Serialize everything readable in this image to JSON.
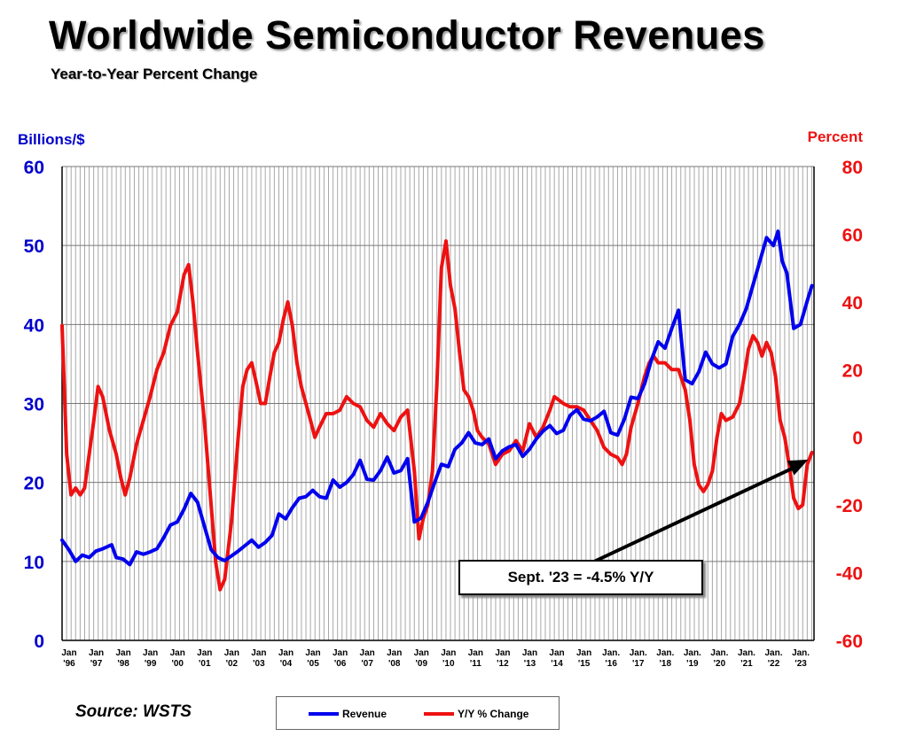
{
  "title": "Worldwide Semiconductor Revenues",
  "subtitle": "Year-to-Year Percent Change",
  "source": "Source: WSTS",
  "callout": "Sept. '23 = -4.5% Y/Y",
  "colors": {
    "revenue": "#0000ee",
    "yoy": "#ee1111",
    "grid": "#a8a8a8",
    "axis": "#000000"
  },
  "chart_data": {
    "type": "line",
    "y_left": {
      "label": "Billions/$",
      "range": [
        0,
        60
      ],
      "ticks": [
        0,
        10,
        20,
        30,
        40,
        50,
        60
      ]
    },
    "y_right": {
      "label": "Percent",
      "range": [
        -60,
        80
      ],
      "ticks": [
        -60,
        -40,
        -20,
        0,
        20,
        40,
        60,
        80
      ]
    },
    "x_range": [
      1996.0,
      2023.75
    ],
    "x_ticks": [
      {
        "year": 1996,
        "top": "Jan",
        "bottom": "'96"
      },
      {
        "year": 1997,
        "top": "Jan",
        "bottom": "'97"
      },
      {
        "year": 1998,
        "top": "Jan",
        "bottom": "'98"
      },
      {
        "year": 1999,
        "top": "Jan",
        "bottom": "'99"
      },
      {
        "year": 2000,
        "top": "Jan",
        "bottom": "'00"
      },
      {
        "year": 2001,
        "top": "Jan",
        "bottom": "'01"
      },
      {
        "year": 2002,
        "top": "Jan",
        "bottom": "'02"
      },
      {
        "year": 2003,
        "top": "Jan",
        "bottom": "'03"
      },
      {
        "year": 2004,
        "top": "Jan",
        "bottom": "'04"
      },
      {
        "year": 2005,
        "top": "Jan",
        "bottom": "'05"
      },
      {
        "year": 2006,
        "top": "Jan",
        "bottom": "'06"
      },
      {
        "year": 2007,
        "top": "Jan",
        "bottom": "'07"
      },
      {
        "year": 2008,
        "top": "Jan",
        "bottom": "'08"
      },
      {
        "year": 2009,
        "top": "Jan",
        "bottom": "'09"
      },
      {
        "year": 2010,
        "top": "Jan",
        "bottom": "'10"
      },
      {
        "year": 2011,
        "top": "Jan",
        "bottom": "'11"
      },
      {
        "year": 2012,
        "top": "Jan",
        "bottom": "'12"
      },
      {
        "year": 2013,
        "top": "Jan",
        "bottom": "'13"
      },
      {
        "year": 2014,
        "top": "Jan",
        "bottom": "'14"
      },
      {
        "year": 2015,
        "top": "Jan",
        "bottom": "'15"
      },
      {
        "year": 2016,
        "top": "Jan.",
        "bottom": "'16"
      },
      {
        "year": 2017,
        "top": "Jan.",
        "bottom": "'17"
      },
      {
        "year": 2018,
        "top": "Jan.",
        "bottom": "'18"
      },
      {
        "year": 2019,
        "top": "Jan.",
        "bottom": "'19"
      },
      {
        "year": 2020,
        "top": "Jan.",
        "bottom": "'20"
      },
      {
        "year": 2021,
        "top": "Jan.",
        "bottom": "'21"
      },
      {
        "year": 2022,
        "top": "Jan.",
        "bottom": "'22"
      },
      {
        "year": 2023,
        "top": "Jan.",
        "bottom": "'23"
      }
    ],
    "grid": "vertical monthly lines, horizontal lines at left-axis ticks",
    "legend_placement": "bottom-center",
    "series": [
      {
        "name": "Revenue",
        "axis": "left",
        "points": [
          [
            1996.0,
            12.7
          ],
          [
            1996.25,
            11.5
          ],
          [
            1996.5,
            10.0
          ],
          [
            1996.75,
            10.8
          ],
          [
            1997.0,
            10.5
          ],
          [
            1997.25,
            11.3
          ],
          [
            1997.5,
            11.6
          ],
          [
            1997.83,
            12.1
          ],
          [
            1998.0,
            10.5
          ],
          [
            1998.25,
            10.3
          ],
          [
            1998.5,
            9.6
          ],
          [
            1998.75,
            11.2
          ],
          [
            1999.0,
            10.9
          ],
          [
            1999.25,
            11.2
          ],
          [
            1999.5,
            11.6
          ],
          [
            1999.75,
            13.0
          ],
          [
            2000.0,
            14.6
          ],
          [
            2000.25,
            15.0
          ],
          [
            2000.5,
            16.6
          ],
          [
            2000.75,
            18.6
          ],
          [
            2001.0,
            17.5
          ],
          [
            2001.25,
            14.5
          ],
          [
            2001.5,
            11.5
          ],
          [
            2001.75,
            10.5
          ],
          [
            2002.0,
            10.1
          ],
          [
            2002.25,
            10.7
          ],
          [
            2002.5,
            11.3
          ],
          [
            2002.75,
            12.0
          ],
          [
            2003.0,
            12.7
          ],
          [
            2003.25,
            11.8
          ],
          [
            2003.5,
            12.4
          ],
          [
            2003.75,
            13.3
          ],
          [
            2004.0,
            16.0
          ],
          [
            2004.25,
            15.4
          ],
          [
            2004.5,
            16.8
          ],
          [
            2004.75,
            18.0
          ],
          [
            2005.0,
            18.2
          ],
          [
            2005.25,
            19.0
          ],
          [
            2005.5,
            18.2
          ],
          [
            2005.75,
            18.0
          ],
          [
            2006.0,
            20.3
          ],
          [
            2006.25,
            19.4
          ],
          [
            2006.5,
            20.0
          ],
          [
            2006.75,
            21.0
          ],
          [
            2007.0,
            22.8
          ],
          [
            2007.25,
            20.4
          ],
          [
            2007.5,
            20.3
          ],
          [
            2007.75,
            21.5
          ],
          [
            2008.0,
            23.2
          ],
          [
            2008.25,
            21.2
          ],
          [
            2008.5,
            21.5
          ],
          [
            2008.75,
            23.0
          ],
          [
            2009.0,
            15.0
          ],
          [
            2009.25,
            15.5
          ],
          [
            2009.5,
            17.5
          ],
          [
            2009.75,
            20.0
          ],
          [
            2010.0,
            22.3
          ],
          [
            2010.25,
            22.0
          ],
          [
            2010.5,
            24.2
          ],
          [
            2010.75,
            25.0
          ],
          [
            2011.0,
            26.3
          ],
          [
            2011.25,
            25.0
          ],
          [
            2011.5,
            24.8
          ],
          [
            2011.75,
            25.5
          ],
          [
            2012.0,
            23.0
          ],
          [
            2012.25,
            24.0
          ],
          [
            2012.5,
            24.5
          ],
          [
            2012.75,
            24.8
          ],
          [
            2013.0,
            23.3
          ],
          [
            2013.25,
            24.2
          ],
          [
            2013.5,
            25.5
          ],
          [
            2013.75,
            26.5
          ],
          [
            2014.0,
            27.2
          ],
          [
            2014.25,
            26.2
          ],
          [
            2014.5,
            26.6
          ],
          [
            2014.75,
            28.5
          ],
          [
            2015.0,
            29.2
          ],
          [
            2015.25,
            28.0
          ],
          [
            2015.5,
            27.8
          ],
          [
            2015.75,
            28.3
          ],
          [
            2016.0,
            29.0
          ],
          [
            2016.25,
            26.3
          ],
          [
            2016.5,
            26.0
          ],
          [
            2016.75,
            28.0
          ],
          [
            2017.0,
            30.8
          ],
          [
            2017.25,
            30.6
          ],
          [
            2017.5,
            32.5
          ],
          [
            2017.75,
            35.5
          ],
          [
            2018.0,
            37.8
          ],
          [
            2018.25,
            37.0
          ],
          [
            2018.5,
            39.5
          ],
          [
            2018.75,
            41.8
          ],
          [
            2019.0,
            33.0
          ],
          [
            2019.25,
            32.5
          ],
          [
            2019.5,
            34.0
          ],
          [
            2019.75,
            36.5
          ],
          [
            2020.0,
            35.0
          ],
          [
            2020.25,
            34.5
          ],
          [
            2020.5,
            35.0
          ],
          [
            2020.75,
            38.5
          ],
          [
            2021.0,
            40.0
          ],
          [
            2021.25,
            42.0
          ],
          [
            2021.5,
            45.0
          ],
          [
            2021.75,
            48.0
          ],
          [
            2022.0,
            51.0
          ],
          [
            2022.25,
            50.0
          ],
          [
            2022.42,
            51.8
          ],
          [
            2022.58,
            48.0
          ],
          [
            2022.75,
            46.5
          ],
          [
            2023.0,
            39.5
          ],
          [
            2023.25,
            40.0
          ],
          [
            2023.5,
            43.0
          ],
          [
            2023.67,
            44.9
          ]
        ]
      },
      {
        "name": "Y/Y % Change",
        "axis": "right",
        "points": [
          [
            1996.0,
            33
          ],
          [
            1996.17,
            -5
          ],
          [
            1996.33,
            -17
          ],
          [
            1996.5,
            -15
          ],
          [
            1996.67,
            -17
          ],
          [
            1996.83,
            -15
          ],
          [
            1997.0,
            -5
          ],
          [
            1997.17,
            5
          ],
          [
            1997.33,
            15
          ],
          [
            1997.5,
            12
          ],
          [
            1997.75,
            2
          ],
          [
            1998.0,
            -5
          ],
          [
            1998.17,
            -12
          ],
          [
            1998.33,
            -17
          ],
          [
            1998.5,
            -12
          ],
          [
            1998.75,
            -2
          ],
          [
            1999.0,
            5
          ],
          [
            1999.25,
            12
          ],
          [
            1999.5,
            20
          ],
          [
            1999.75,
            25
          ],
          [
            2000.0,
            33
          ],
          [
            2000.25,
            37
          ],
          [
            2000.5,
            48
          ],
          [
            2000.67,
            51
          ],
          [
            2000.83,
            40
          ],
          [
            2001.0,
            25
          ],
          [
            2001.25,
            5
          ],
          [
            2001.5,
            -20
          ],
          [
            2001.67,
            -37
          ],
          [
            2001.83,
            -45
          ],
          [
            2002.0,
            -42
          ],
          [
            2002.25,
            -25
          ],
          [
            2002.5,
            0
          ],
          [
            2002.67,
            15
          ],
          [
            2002.83,
            20
          ],
          [
            2003.0,
            22
          ],
          [
            2003.17,
            16
          ],
          [
            2003.33,
            10
          ],
          [
            2003.5,
            10
          ],
          [
            2003.67,
            18
          ],
          [
            2003.83,
            25
          ],
          [
            2004.0,
            28
          ],
          [
            2004.17,
            35
          ],
          [
            2004.33,
            40
          ],
          [
            2004.5,
            33
          ],
          [
            2004.67,
            22
          ],
          [
            2004.83,
            15
          ],
          [
            2005.0,
            10
          ],
          [
            2005.17,
            5
          ],
          [
            2005.33,
            0
          ],
          [
            2005.5,
            3
          ],
          [
            2005.75,
            7
          ],
          [
            2006.0,
            7
          ],
          [
            2006.25,
            8
          ],
          [
            2006.5,
            12
          ],
          [
            2006.75,
            10
          ],
          [
            2007.0,
            9
          ],
          [
            2007.25,
            5
          ],
          [
            2007.5,
            3
          ],
          [
            2007.75,
            7
          ],
          [
            2008.0,
            4
          ],
          [
            2008.25,
            2
          ],
          [
            2008.5,
            6
          ],
          [
            2008.75,
            8
          ],
          [
            2009.0,
            -10
          ],
          [
            2009.17,
            -30
          ],
          [
            2009.33,
            -24
          ],
          [
            2009.5,
            -20
          ],
          [
            2009.67,
            -10
          ],
          [
            2009.83,
            15
          ],
          [
            2010.0,
            50
          ],
          [
            2010.17,
            58
          ],
          [
            2010.33,
            45
          ],
          [
            2010.5,
            38
          ],
          [
            2010.67,
            25
          ],
          [
            2010.83,
            14
          ],
          [
            2011.0,
            12
          ],
          [
            2011.17,
            8
          ],
          [
            2011.33,
            2
          ],
          [
            2011.5,
            0
          ],
          [
            2011.75,
            -2
          ],
          [
            2012.0,
            -8
          ],
          [
            2012.25,
            -5
          ],
          [
            2012.5,
            -4
          ],
          [
            2012.75,
            -1
          ],
          [
            2013.0,
            -4
          ],
          [
            2013.25,
            4
          ],
          [
            2013.5,
            0
          ],
          [
            2013.75,
            3
          ],
          [
            2014.0,
            8
          ],
          [
            2014.17,
            12
          ],
          [
            2014.5,
            10
          ],
          [
            2014.75,
            9
          ],
          [
            2015.0,
            9
          ],
          [
            2015.25,
            8
          ],
          [
            2015.5,
            5
          ],
          [
            2015.75,
            2
          ],
          [
            2016.0,
            -3
          ],
          [
            2016.25,
            -5
          ],
          [
            2016.5,
            -6
          ],
          [
            2016.67,
            -8
          ],
          [
            2016.83,
            -5
          ],
          [
            2017.0,
            3
          ],
          [
            2017.25,
            10
          ],
          [
            2017.5,
            18
          ],
          [
            2017.67,
            22
          ],
          [
            2017.83,
            24
          ],
          [
            2018.0,
            22
          ],
          [
            2018.25,
            22
          ],
          [
            2018.5,
            20
          ],
          [
            2018.75,
            20
          ],
          [
            2019.0,
            14
          ],
          [
            2019.17,
            5
          ],
          [
            2019.33,
            -8
          ],
          [
            2019.5,
            -14
          ],
          [
            2019.67,
            -16
          ],
          [
            2019.83,
            -14
          ],
          [
            2020.0,
            -10
          ],
          [
            2020.17,
            0
          ],
          [
            2020.33,
            7
          ],
          [
            2020.5,
            5
          ],
          [
            2020.75,
            6
          ],
          [
            2021.0,
            10
          ],
          [
            2021.17,
            18
          ],
          [
            2021.33,
            26
          ],
          [
            2021.5,
            30
          ],
          [
            2021.67,
            28
          ],
          [
            2021.83,
            24
          ],
          [
            2022.0,
            28
          ],
          [
            2022.17,
            25
          ],
          [
            2022.33,
            18
          ],
          [
            2022.5,
            5
          ],
          [
            2022.67,
            0
          ],
          [
            2022.83,
            -8
          ],
          [
            2023.0,
            -18
          ],
          [
            2023.17,
            -21
          ],
          [
            2023.33,
            -20
          ],
          [
            2023.5,
            -8
          ],
          [
            2023.67,
            -4.5
          ]
        ]
      }
    ],
    "annotation": {
      "text": "Sept. '23 = -4.5% Y/Y",
      "points_to": [
        2023.67,
        -4.5
      ]
    }
  }
}
